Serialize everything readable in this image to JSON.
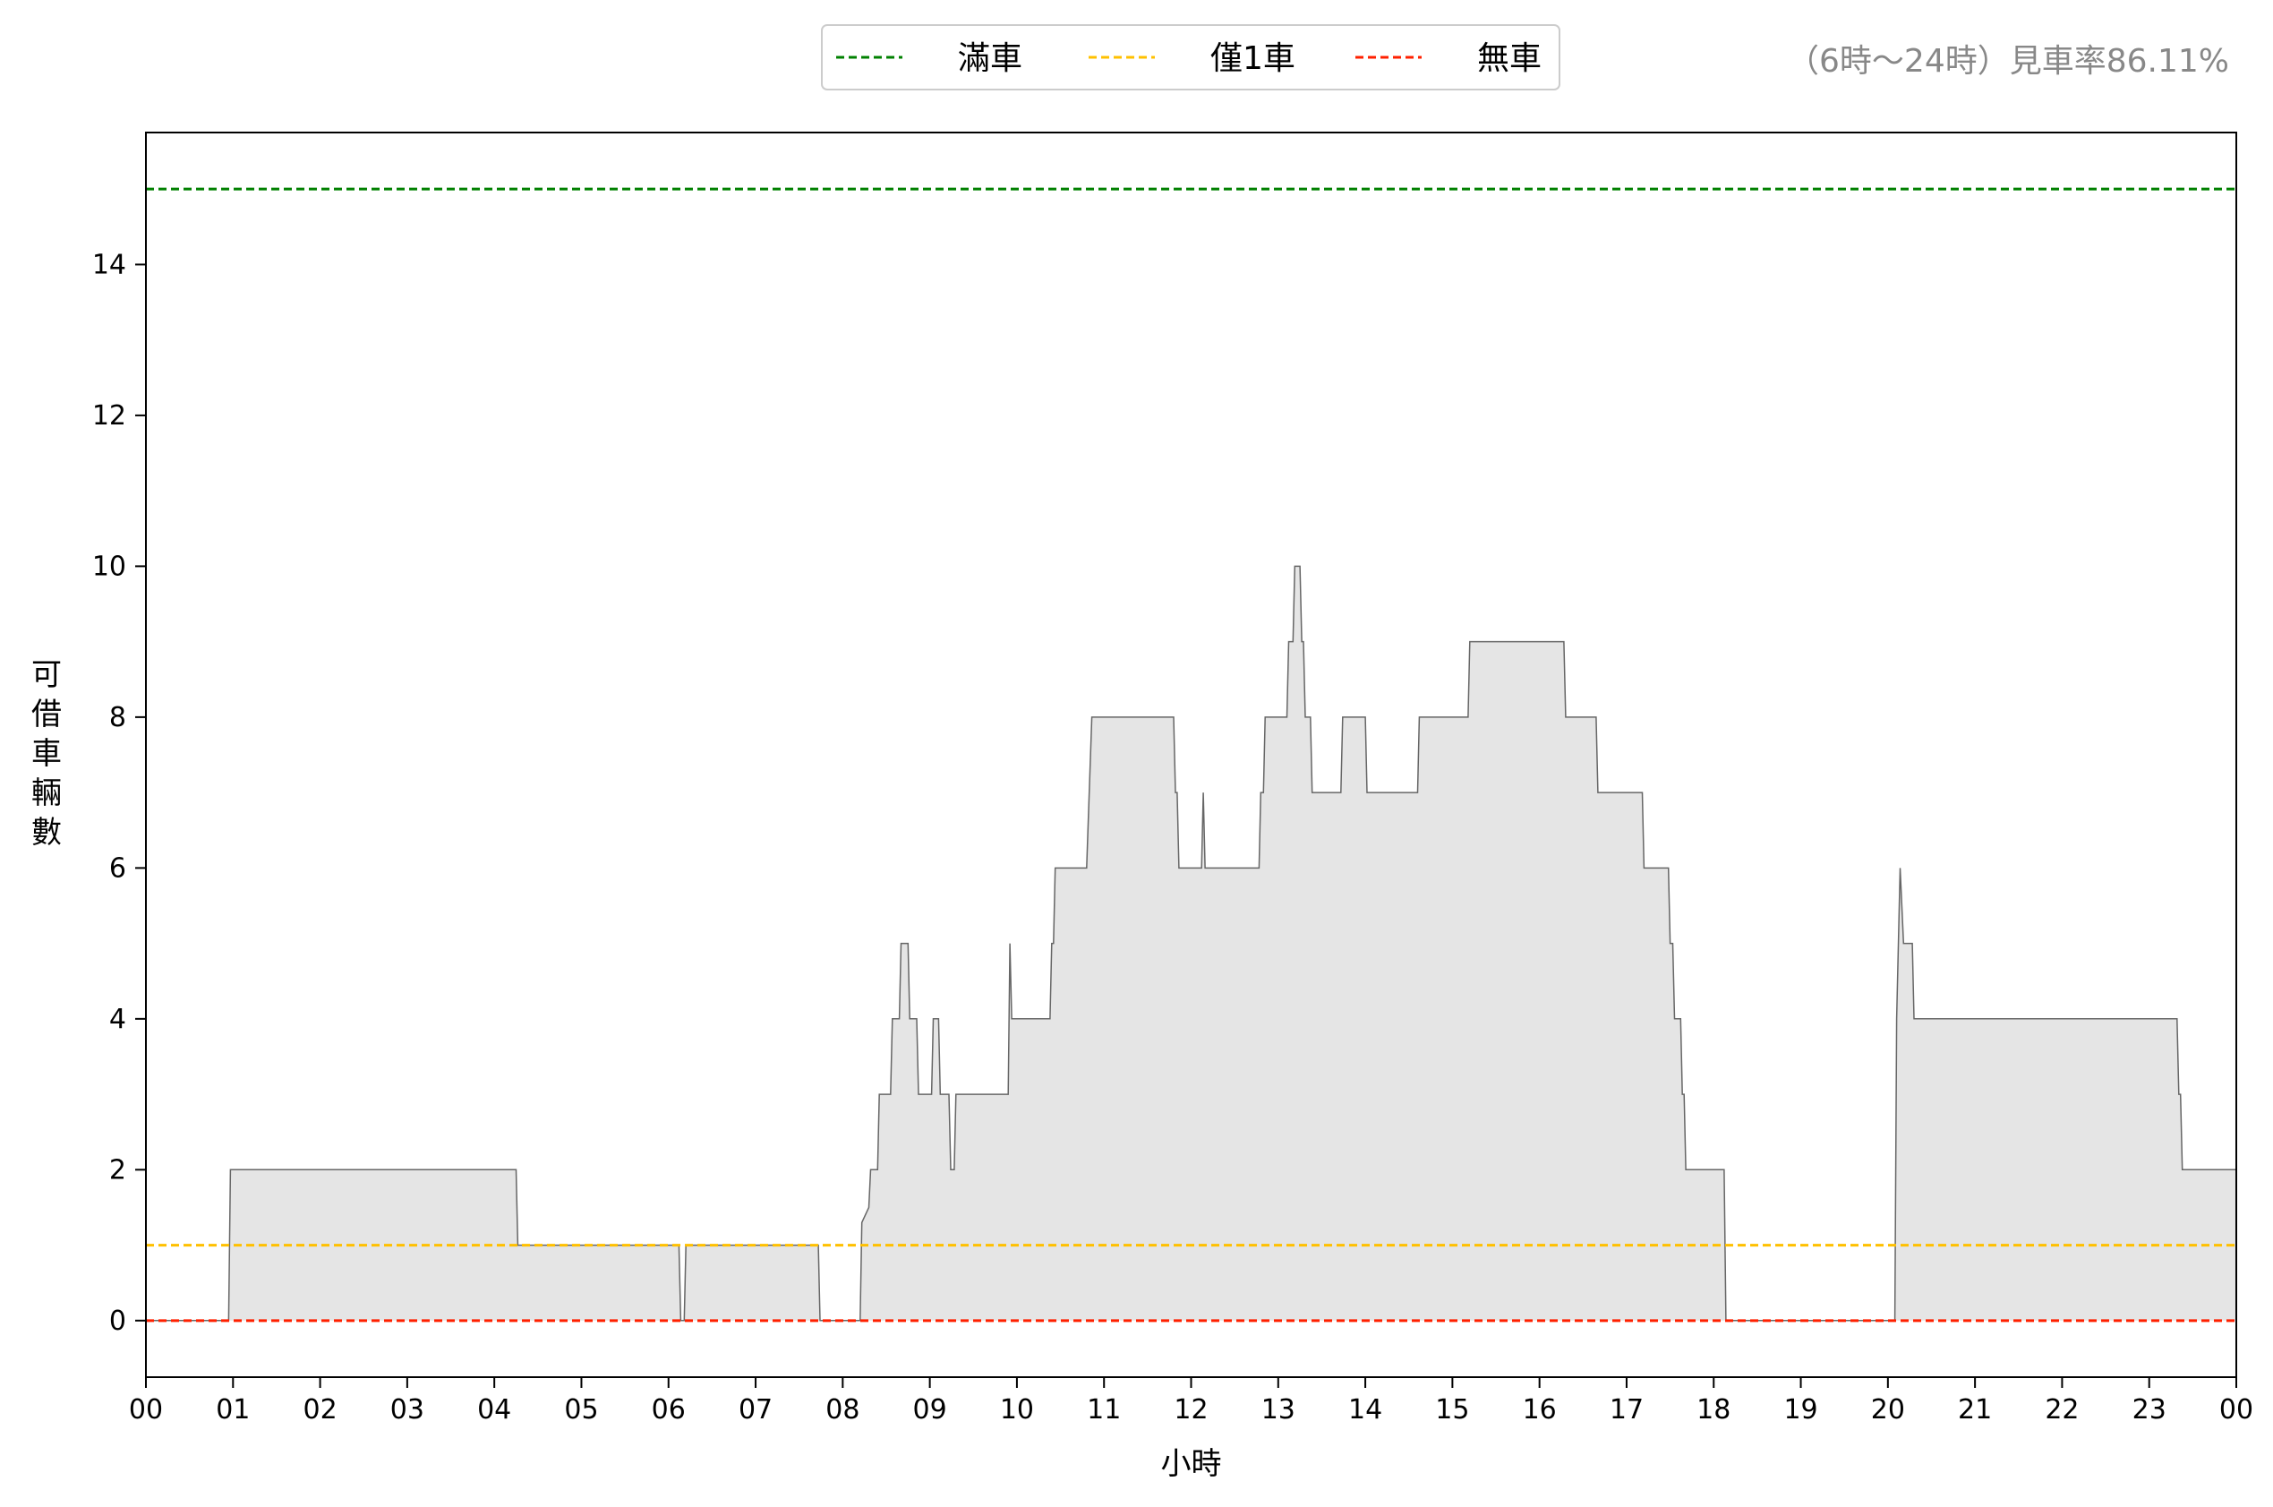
{
  "chart_data": {
    "type": "area",
    "title": "",
    "xlabel": "小時",
    "ylabel": "可借車輛數",
    "annotation": "（6時～24時）見車率86.11%",
    "x_ticks": [
      "00",
      "01",
      "02",
      "03",
      "04",
      "05",
      "06",
      "07",
      "08",
      "09",
      "10",
      "11",
      "12",
      "13",
      "14",
      "15",
      "16",
      "17",
      "18",
      "19",
      "20",
      "21",
      "22",
      "23",
      "00"
    ],
    "y_ticks": [
      0,
      2,
      4,
      6,
      8,
      10,
      12,
      14
    ],
    "xlim": [
      0,
      24
    ],
    "ylim": [
      -0.75,
      15.75
    ],
    "grid": false,
    "legend_position": "top-center",
    "fill_color": "#e5e5e5",
    "line_color": "#666666",
    "reference_lines": [
      {
        "name": "滿車",
        "value": 15,
        "color": "#008000"
      },
      {
        "name": "僅1車",
        "value": 1,
        "color": "#ffc000"
      },
      {
        "name": "無車",
        "value": 0,
        "color": "#ff2000"
      }
    ],
    "series": [
      {
        "points": [
          [
            0,
            0
          ],
          [
            0.95,
            0
          ],
          [
            0.97,
            2
          ],
          [
            4.25,
            2
          ],
          [
            4.27,
            1
          ],
          [
            6.12,
            1
          ],
          [
            6.14,
            0
          ],
          [
            6.18,
            0
          ],
          [
            6.2,
            1
          ],
          [
            7.72,
            1
          ],
          [
            7.74,
            0
          ],
          [
            8.2,
            0
          ],
          [
            8.22,
            1.3
          ],
          [
            8.3,
            1.5
          ],
          [
            8.32,
            2
          ],
          [
            8.4,
            2
          ],
          [
            8.42,
            3
          ],
          [
            8.55,
            3
          ],
          [
            8.57,
            4
          ],
          [
            8.65,
            4
          ],
          [
            8.67,
            5
          ],
          [
            8.75,
            5
          ],
          [
            8.77,
            4
          ],
          [
            8.85,
            4
          ],
          [
            8.87,
            3
          ],
          [
            9.02,
            3
          ],
          [
            9.04,
            4
          ],
          [
            9.1,
            4
          ],
          [
            9.12,
            3
          ],
          [
            9.22,
            3
          ],
          [
            9.24,
            2
          ],
          [
            9.28,
            2
          ],
          [
            9.3,
            3
          ],
          [
            9.9,
            3
          ],
          [
            9.92,
            5
          ],
          [
            9.94,
            4
          ],
          [
            10.38,
            4
          ],
          [
            10.4,
            5
          ],
          [
            10.42,
            5
          ],
          [
            10.44,
            6
          ],
          [
            10.8,
            6
          ],
          [
            10.86,
            8
          ],
          [
            11.8,
            8
          ],
          [
            11.82,
            7
          ],
          [
            11.84,
            7
          ],
          [
            11.86,
            6
          ],
          [
            12.12,
            6
          ],
          [
            12.14,
            7
          ],
          [
            12.16,
            6
          ],
          [
            12.78,
            6
          ],
          [
            12.8,
            7
          ],
          [
            12.83,
            7
          ],
          [
            12.85,
            8
          ],
          [
            13.1,
            8
          ],
          [
            13.12,
            9
          ],
          [
            13.17,
            9
          ],
          [
            13.19,
            10
          ],
          [
            13.25,
            10
          ],
          [
            13.27,
            9
          ],
          [
            13.29,
            9
          ],
          [
            13.31,
            8
          ],
          [
            13.37,
            8
          ],
          [
            13.39,
            7
          ],
          [
            13.72,
            7
          ],
          [
            13.74,
            8
          ],
          [
            14.0,
            8
          ],
          [
            14.02,
            7
          ],
          [
            14.6,
            7
          ],
          [
            14.62,
            8
          ],
          [
            15.18,
            8
          ],
          [
            15.2,
            9
          ],
          [
            16.28,
            9
          ],
          [
            16.3,
            8
          ],
          [
            16.65,
            8
          ],
          [
            16.67,
            7
          ],
          [
            17.18,
            7
          ],
          [
            17.2,
            6
          ],
          [
            17.48,
            6
          ],
          [
            17.5,
            5
          ],
          [
            17.53,
            5
          ],
          [
            17.55,
            4
          ],
          [
            17.62,
            4
          ],
          [
            17.64,
            3
          ],
          [
            17.66,
            3
          ],
          [
            17.68,
            2
          ],
          [
            18.12,
            2
          ],
          [
            18.14,
            0
          ],
          [
            20.08,
            0
          ],
          [
            20.1,
            4
          ],
          [
            20.14,
            6
          ],
          [
            20.18,
            5
          ],
          [
            20.28,
            5
          ],
          [
            20.3,
            4
          ],
          [
            23.32,
            4
          ],
          [
            23.34,
            3
          ],
          [
            23.36,
            3
          ],
          [
            23.38,
            2
          ],
          [
            24,
            2
          ],
          [
            24,
            0
          ]
        ]
      }
    ]
  }
}
